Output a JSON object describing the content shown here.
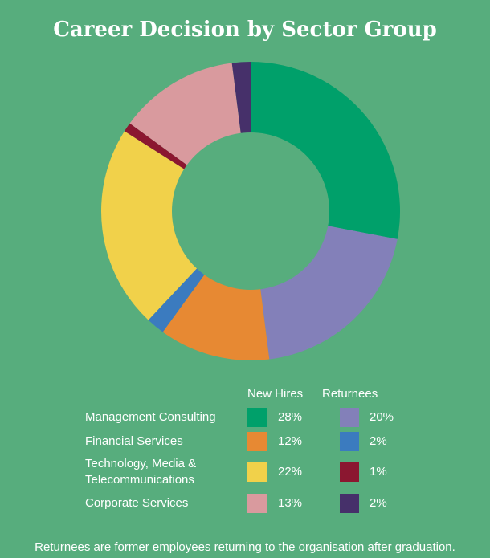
{
  "title": "Career Decision by Sector Group",
  "legend_headers": {
    "new_hires": "New Hires",
    "returnees": "Returnees"
  },
  "note": "Returnees are former employees returning to the organisation after graduation.",
  "chart_data": {
    "type": "pie",
    "title": "Career Decision by Sector Group",
    "slices": [
      {
        "label": "Management Consulting – New Hires",
        "value": 28,
        "color": "#00a06a"
      },
      {
        "label": "Management Consulting – Returnees",
        "value": 20,
        "color": "#8380b9"
      },
      {
        "label": "Financial Services – New Hires",
        "value": 12,
        "color": "#e78933"
      },
      {
        "label": "Financial Services – Returnees",
        "value": 2,
        "color": "#3b7bbf"
      },
      {
        "label": "Technology, Media & Telecommunications – New Hires",
        "value": 22,
        "color": "#f1d14a"
      },
      {
        "label": "Technology, Media & Telecommunications – Returnees",
        "value": 1,
        "color": "#8b1730"
      },
      {
        "label": "Corporate Services – New Hires",
        "value": 13,
        "color": "#d99a9e"
      },
      {
        "label": "Corporate Services – Returnees",
        "value": 2,
        "color": "#46306a"
      }
    ],
    "categories": [
      {
        "name": "Management Consulting",
        "new_hires": "28%",
        "returnees": "20%",
        "new_color": "#00a06a",
        "ret_color": "#8380b9"
      },
      {
        "name": "Financial Services",
        "new_hires": "12%",
        "returnees": "2%",
        "new_color": "#e78933",
        "ret_color": "#3b7bbf"
      },
      {
        "name": "Technology, Media & Telecommunications",
        "new_hires": "22%",
        "returnees": "1%",
        "new_color": "#f1d14a",
        "ret_color": "#8b1730"
      },
      {
        "name": "Corporate Services",
        "new_hires": "13%",
        "returnees": "2%",
        "new_color": "#d99a9e",
        "ret_color": "#46306a"
      }
    ]
  }
}
